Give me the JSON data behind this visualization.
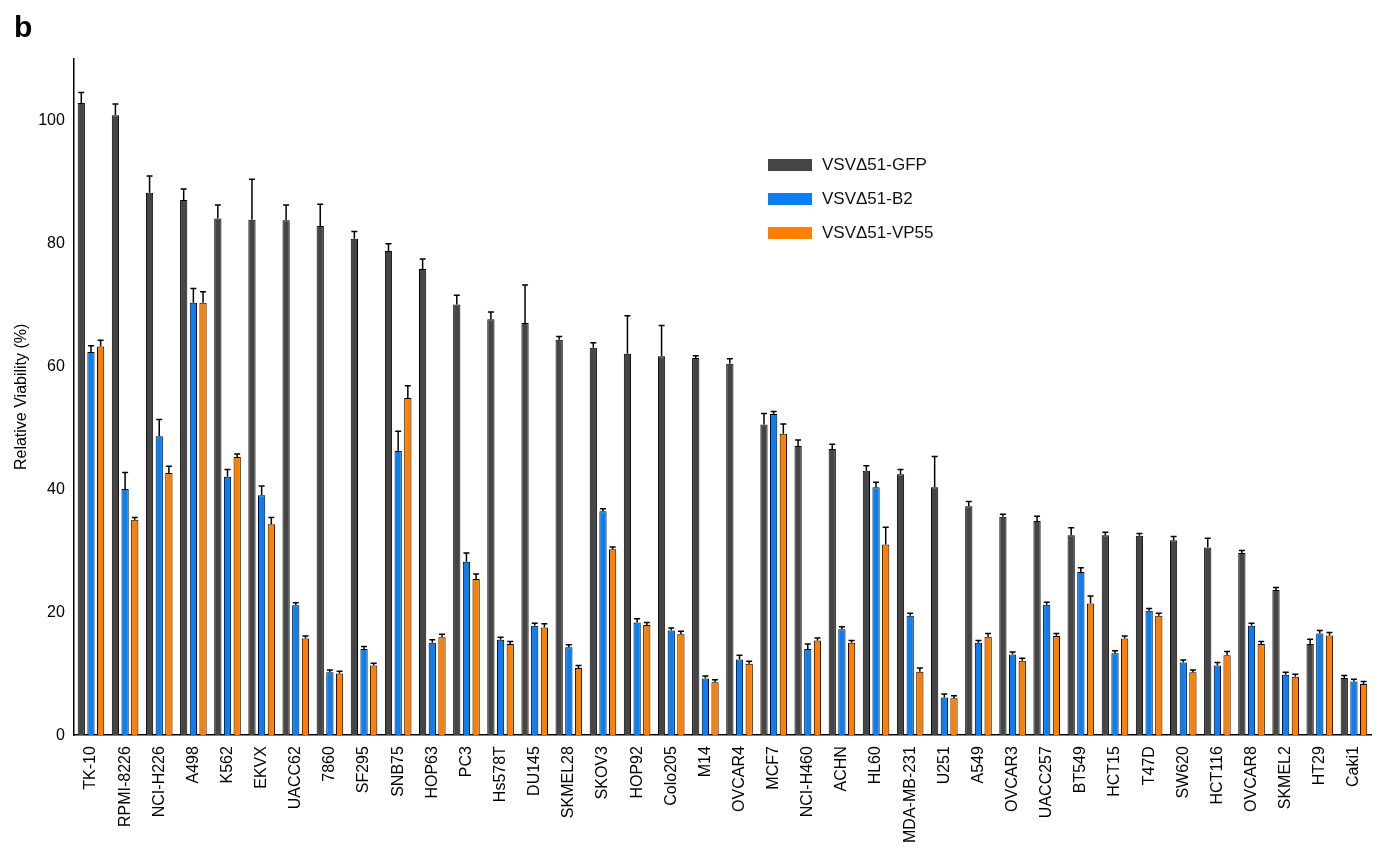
{
  "chart_data": {
    "type": "bar",
    "ylabel": "Relative Viability (%)",
    "annotations": [
      "b"
    ],
    "categories": [
      "TK-10",
      "RPMI-8226",
      "NCI-H226",
      "A498",
      "K562",
      "EKVX",
      "UACC62",
      "7860",
      "SF295",
      "SNB75",
      "HOP63",
      "PC3",
      "Hs578T",
      "DU145",
      "SKMEL28",
      "SKOV3",
      "HOP92",
      "Colo205",
      "M14",
      "OVCAR4",
      "MCF7",
      "NCI-H460",
      "ACHN",
      "HL60",
      "MDA-MB-231",
      "U251",
      "A549",
      "OVCAR3",
      "UACC257",
      "BT549",
      "HCT15",
      "T47D",
      "SW620",
      "HCT116",
      "OVCAR8",
      "SKMEL2",
      "HT29",
      "Caki1"
    ],
    "series": [
      {
        "name": "VSVΔ51-GFP",
        "color": "#454545",
        "values": [
          102.8,
          100.8,
          88.2,
          87,
          84,
          83.8,
          83.7,
          82.8,
          80.7,
          78.7,
          75.8,
          70,
          67.6,
          67,
          64.3,
          63,
          62,
          61.6,
          61.3,
          60.4,
          50.5,
          47,
          46.5,
          43,
          42.4,
          40.3,
          37.2,
          35.5,
          34.8,
          32.5,
          32.5,
          32.4,
          31.7,
          30.5,
          29.6,
          23.6,
          14.8,
          9.3
        ],
        "errors": [
          [
            102.8,
            104.5
          ],
          [
            100.8,
            102.6
          ],
          [
            88.2,
            90.9
          ],
          [
            87,
            88.8
          ],
          [
            84,
            86.2
          ],
          [
            83.8,
            90.4
          ],
          [
            83.7,
            86.2
          ],
          [
            82.8,
            86.3
          ],
          [
            80.7,
            81.9
          ],
          [
            78.7,
            79.9
          ],
          [
            75.8,
            77.4
          ],
          [
            70,
            71.5
          ],
          [
            67.6,
            68.8
          ],
          [
            67,
            73.2
          ],
          [
            64.3,
            64.8
          ],
          [
            63,
            63.8
          ],
          [
            62,
            68.2
          ],
          [
            61.6,
            66.6
          ],
          [
            61.3,
            61.7
          ],
          [
            60.4,
            61.2
          ],
          [
            50.5,
            52.3
          ],
          [
            47,
            48
          ],
          [
            46.5,
            47.3
          ],
          [
            43,
            43.8
          ],
          [
            42.4,
            43.2
          ],
          [
            40.3,
            45.3
          ],
          [
            37.2,
            38
          ],
          [
            35.5,
            35.9
          ],
          [
            34.8,
            35.6
          ],
          [
            32.5,
            33.7
          ],
          [
            32.5,
            33
          ],
          [
            32.4,
            32.8
          ],
          [
            31.7,
            32.3
          ],
          [
            30.5,
            32
          ],
          [
            29.6,
            30
          ],
          [
            23.6,
            24
          ],
          [
            14.8,
            15.6
          ],
          [
            9.3,
            9.7
          ]
        ]
      },
      {
        "name": "VSVΔ51-B2",
        "color": "#0a7ff5",
        "values": [
          62.3,
          40,
          48.6,
          70.3,
          42,
          39,
          21.1,
          10.2,
          14,
          46.2,
          15,
          28.2,
          15.5,
          17.8,
          14.3,
          36.4,
          18.3,
          17,
          9.2,
          12.3,
          52.2,
          14,
          17.2,
          40.3,
          19.4,
          6.1,
          15,
          13.1,
          21.2,
          26.5,
          13.3,
          20.2,
          11.8,
          11.3,
          17.8,
          9.8,
          16.5,
          8.7
        ],
        "errors": [
          [
            62.3,
            63.3
          ],
          [
            40,
            42.7
          ],
          [
            48.6,
            51.3
          ],
          [
            70.3,
            72.6
          ],
          [
            42,
            43.2
          ],
          [
            39,
            40.5
          ],
          [
            21.1,
            21.5
          ],
          [
            10.2,
            10.6
          ],
          [
            14,
            14.4
          ],
          [
            46.2,
            49.4
          ],
          [
            15,
            15.5
          ],
          [
            28.2,
            29.6
          ],
          [
            15.5,
            15.9
          ],
          [
            17.8,
            18.2
          ],
          [
            14.3,
            14.7
          ],
          [
            36.4,
            36.8
          ],
          [
            18.3,
            18.9
          ],
          [
            17,
            17.4
          ],
          [
            9.2,
            9.6
          ],
          [
            12.3,
            13
          ],
          [
            52.2,
            52.6
          ],
          [
            14,
            14.8
          ],
          [
            17.2,
            17.6
          ],
          [
            40.3,
            41.1
          ],
          [
            19.4,
            19.8
          ],
          [
            6.1,
            6.7
          ],
          [
            15,
            15.4
          ],
          [
            13.1,
            13.5
          ],
          [
            21.2,
            21.6
          ],
          [
            26.5,
            27.2
          ],
          [
            13.3,
            13.7
          ],
          [
            20.2,
            20.6
          ],
          [
            11.8,
            12.2
          ],
          [
            11.3,
            11.8
          ],
          [
            17.8,
            18.2
          ],
          [
            9.8,
            10.2
          ],
          [
            16.5,
            17
          ],
          [
            8.7,
            9.1
          ]
        ]
      },
      {
        "name": "VSVΔ51-VP55",
        "color": "#ff7f00",
        "values": [
          63.2,
          35,
          42.6,
          70.3,
          45.2,
          34.3,
          15.7,
          10,
          11.3,
          54.8,
          15.9,
          25.4,
          14.8,
          17.5,
          10.9,
          30.2,
          17.9,
          16.4,
          8.6,
          11.6,
          49,
          15.4,
          15,
          31,
          10.3,
          6,
          16,
          12.1,
          16.1,
          21.4,
          15.7,
          19.4,
          10.2,
          13,
          14.8,
          9.5,
          16.2,
          8.3
        ],
        "errors": [
          [
            63.2,
            64.2
          ],
          [
            35,
            35.4
          ],
          [
            42.6,
            43.7
          ],
          [
            70.3,
            72.1
          ],
          [
            45.2,
            45.7
          ],
          [
            34.3,
            35.4
          ],
          [
            15.7,
            16.1
          ],
          [
            10,
            10.4
          ],
          [
            11.3,
            11.7
          ],
          [
            54.8,
            56.8
          ],
          [
            15.9,
            16.4
          ],
          [
            25.4,
            26.2
          ],
          [
            14.8,
            15.2
          ],
          [
            17.5,
            18.1
          ],
          [
            10.9,
            11.3
          ],
          [
            30.2,
            30.6
          ],
          [
            17.9,
            18.3
          ],
          [
            16.4,
            16.9
          ],
          [
            8.6,
            9
          ],
          [
            11.6,
            12
          ],
          [
            49,
            50.6
          ],
          [
            15.4,
            15.8
          ],
          [
            15,
            15.4
          ],
          [
            31,
            33.8
          ],
          [
            10.3,
            10.9
          ],
          [
            6,
            6.4
          ],
          [
            16,
            16.5
          ],
          [
            12.1,
            12.5
          ],
          [
            16.1,
            16.5
          ],
          [
            21.4,
            22.6
          ],
          [
            15.7,
            16.1
          ],
          [
            19.4,
            19.8
          ],
          [
            10.2,
            10.6
          ],
          [
            13,
            13.6
          ],
          [
            14.8,
            15.2
          ],
          [
            9.5,
            9.9
          ],
          [
            16.2,
            16.7
          ],
          [
            8.3,
            8.7
          ]
        ]
      }
    ],
    "ylim": [
      0,
      110
    ],
    "yticks": [
      0,
      20,
      40,
      60,
      80,
      100
    ],
    "grid": false,
    "legend": "top right"
  }
}
